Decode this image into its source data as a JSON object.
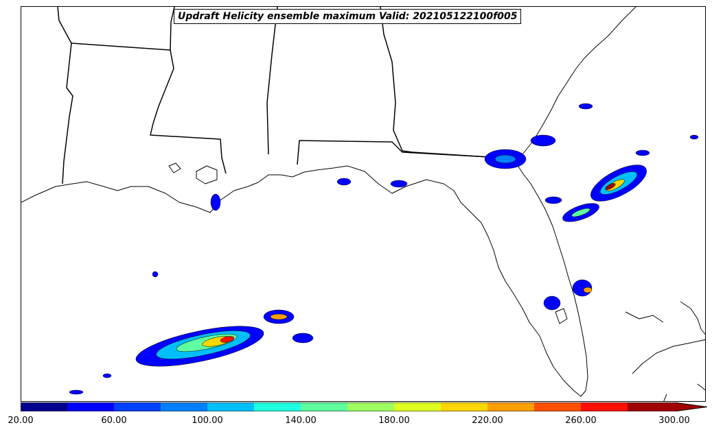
{
  "title": "Updraft Helicity ensemble maximum Valid: 202105122100f005",
  "colorbar": {
    "ticks": [
      "20.00",
      "60.00",
      "100.00",
      "140.00",
      "180.00",
      "220.00",
      "260.00",
      "300.00"
    ],
    "colors": [
      "#00008f",
      "#0000ff",
      "#0040ff",
      "#0080ff",
      "#00bfff",
      "#1fffdf",
      "#5fff9f",
      "#9fff5f",
      "#dfff1f",
      "#ffd700",
      "#ffa000",
      "#ff5000",
      "#ff1000",
      "#a00000"
    ],
    "extend": "max"
  },
  "map": {
    "region": "Gulf of Mexico / Florida / Southeast US",
    "features": [
      "coastlines",
      "state borders"
    ]
  }
}
